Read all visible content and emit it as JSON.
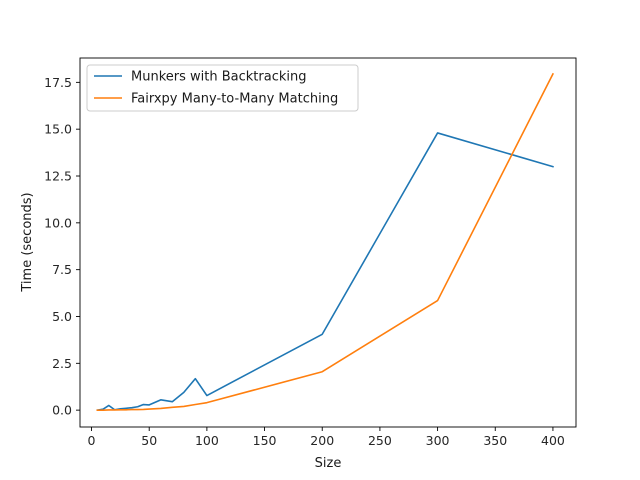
{
  "chart_data": {
    "type": "line",
    "title": "",
    "xlabel": "Size",
    "ylabel": "Time (seconds)",
    "xlim": [
      -10,
      420
    ],
    "ylim": [
      -0.9,
      18.8
    ],
    "xticks": [
      0,
      50,
      100,
      150,
      200,
      250,
      300,
      350,
      400
    ],
    "xtick_labels": [
      "0",
      "50",
      "100",
      "150",
      "200",
      "250",
      "300",
      "350",
      "400"
    ],
    "yticks": [
      0,
      2.5,
      5,
      7.5,
      10,
      12.5,
      15,
      17.5
    ],
    "ytick_labels": [
      "0.0",
      "2.5",
      "5.0",
      "7.5",
      "10.0",
      "12.5",
      "15.0",
      "17.5"
    ],
    "grid": false,
    "legend_position": "top-left",
    "series": [
      {
        "name": "Munkers with Backtracking",
        "color": "#1f77b4",
        "x": [
          5,
          10,
          15,
          20,
          25,
          30,
          35,
          40,
          45,
          50,
          60,
          70,
          80,
          90,
          100,
          200,
          300,
          400
        ],
        "y": [
          0.0,
          0.05,
          0.25,
          0.02,
          0.07,
          0.1,
          0.13,
          0.18,
          0.3,
          0.28,
          0.55,
          0.45,
          0.95,
          1.68,
          0.78,
          4.05,
          14.8,
          13.0
        ]
      },
      {
        "name": "Fairxpy Many-to-Many Matching",
        "color": "#ff7f0e",
        "x": [
          5,
          10,
          15,
          20,
          25,
          30,
          35,
          40,
          45,
          50,
          60,
          70,
          80,
          90,
          100,
          200,
          300,
          400
        ],
        "y": [
          0.0,
          0.0,
          0.01,
          0.01,
          0.02,
          0.02,
          0.03,
          0.03,
          0.04,
          0.06,
          0.09,
          0.15,
          0.2,
          0.3,
          0.4,
          2.05,
          5.85,
          17.95
        ]
      }
    ]
  }
}
